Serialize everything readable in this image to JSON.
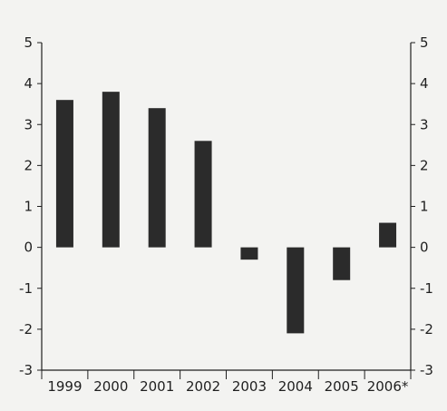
{
  "chart_data": {
    "type": "bar",
    "categories": [
      "1999",
      "2000",
      "2001",
      "2002",
      "2003",
      "2004",
      "2005",
      "2006*"
    ],
    "values": [
      3.6,
      3.8,
      3.4,
      2.6,
      -0.3,
      -2.1,
      -0.8,
      0.6
    ],
    "ylim": [
      -3,
      5
    ],
    "yticks": [
      "5",
      "4",
      "3",
      "2",
      "1",
      "0",
      "-1",
      "-2",
      "-3"
    ],
    "grid": false,
    "bar_color": "#2b2b2b",
    "axis_color": "#1f1f1f",
    "title": "",
    "xlabel": "",
    "ylabel": ""
  }
}
